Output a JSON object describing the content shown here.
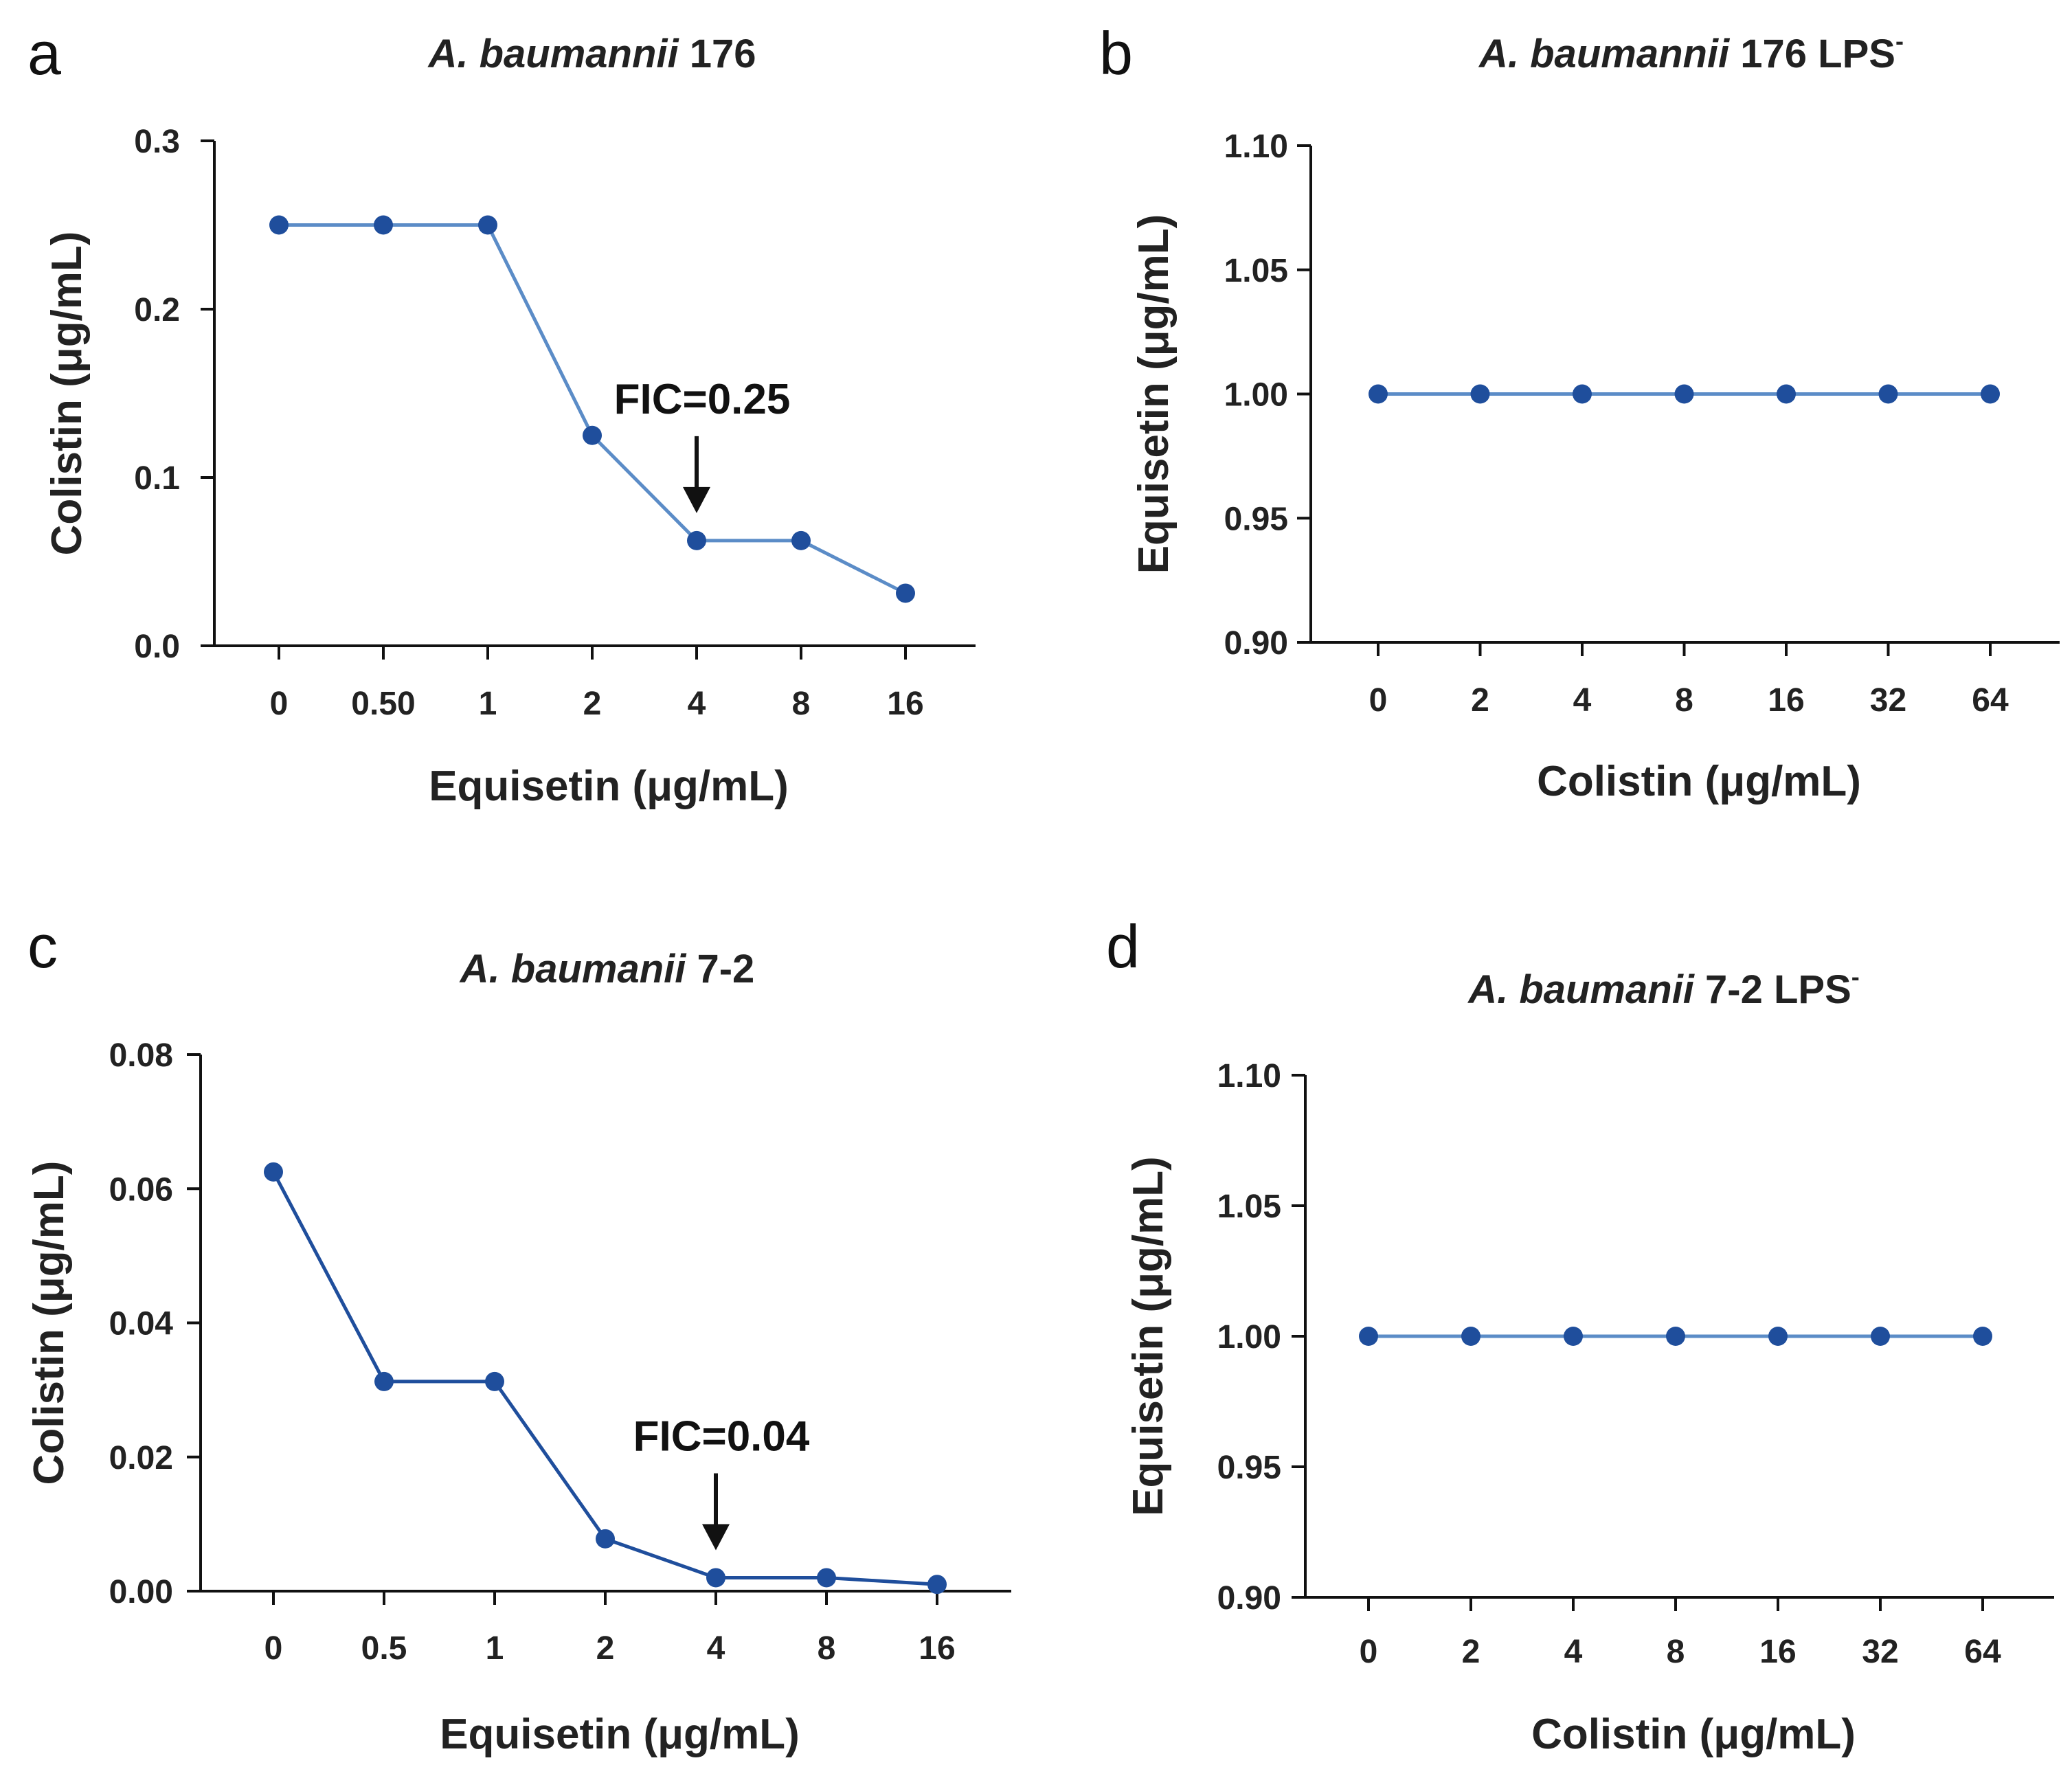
{
  "figure": {
    "colors": {
      "line_light": "#5b8cc7",
      "line_dark": "#1f4e9c",
      "marker": "#1f4e9c"
    }
  },
  "chart_data": [
    {
      "panel_label": "a",
      "type": "line",
      "title_species": "A. baumannii",
      "title_strain": " 176",
      "title_sup": "",
      "xlabel": "Equisetin (μg/mL)",
      "ylabel": "Colistin (μg/mL)",
      "categories": [
        "0",
        "0.50",
        "1",
        "2",
        "4",
        "8",
        "16"
      ],
      "values": [
        0.25,
        0.25,
        0.25,
        0.125,
        0.0625,
        0.0625,
        0.03125
      ],
      "ylim": [
        0,
        0.3
      ],
      "yticks": [
        "0.0",
        "0.1",
        "0.2",
        "0.3"
      ],
      "annotation": {
        "text": "FIC=0.25",
        "category_index": 4
      },
      "color": "#5b8cc7"
    },
    {
      "panel_label": "b",
      "type": "line",
      "title_species": "A. baumannii",
      "title_strain": " 176 LPS",
      "title_sup": "-",
      "xlabel": "Colistin (μg/mL)",
      "ylabel": "Equisetin (μg/mL)",
      "categories": [
        "0",
        "2",
        "4",
        "8",
        "16",
        "32",
        "64"
      ],
      "values": [
        1.0,
        1.0,
        1.0,
        1.0,
        1.0,
        1.0,
        1.0
      ],
      "ylim": [
        0.9,
        1.1
      ],
      "yticks": [
        "0.90",
        "0.95",
        "1.00",
        "1.05",
        "1.10"
      ],
      "annotation": null,
      "color": "#5b8cc7"
    },
    {
      "panel_label": "c",
      "type": "line",
      "title_species": "A. baumanii",
      "title_strain": " 7-2",
      "title_sup": "",
      "xlabel": "Equisetin (μg/mL)",
      "ylabel": "Colistin (μg/mL)",
      "categories": [
        "0",
        "0.5",
        "1",
        "2",
        "4",
        "8",
        "16"
      ],
      "values": [
        0.0625,
        0.03125,
        0.03125,
        0.0078,
        0.002,
        0.002,
        0.001
      ],
      "ylim": [
        0,
        0.08
      ],
      "yticks": [
        "0.00",
        "0.02",
        "0.04",
        "0.06",
        "0.08"
      ],
      "annotation": {
        "text": "FIC=0.04",
        "category_index": 4
      },
      "color": "#1f4e9c"
    },
    {
      "panel_label": "d",
      "type": "line",
      "title_species": "A. baumanii",
      "title_strain": " 7-2 LPS",
      "title_sup": "-",
      "xlabel": "Colistin (μg/mL)",
      "ylabel": "Equisetin (μg/mL)",
      "categories": [
        "0",
        "2",
        "4",
        "8",
        "16",
        "32",
        "64"
      ],
      "values": [
        1.0,
        1.0,
        1.0,
        1.0,
        1.0,
        1.0,
        1.0
      ],
      "ylim": [
        0.9,
        1.1
      ],
      "yticks": [
        "0.90",
        "0.95",
        "1.00",
        "1.05",
        "1.10"
      ],
      "annotation": null,
      "color": "#5b8cc7"
    }
  ]
}
